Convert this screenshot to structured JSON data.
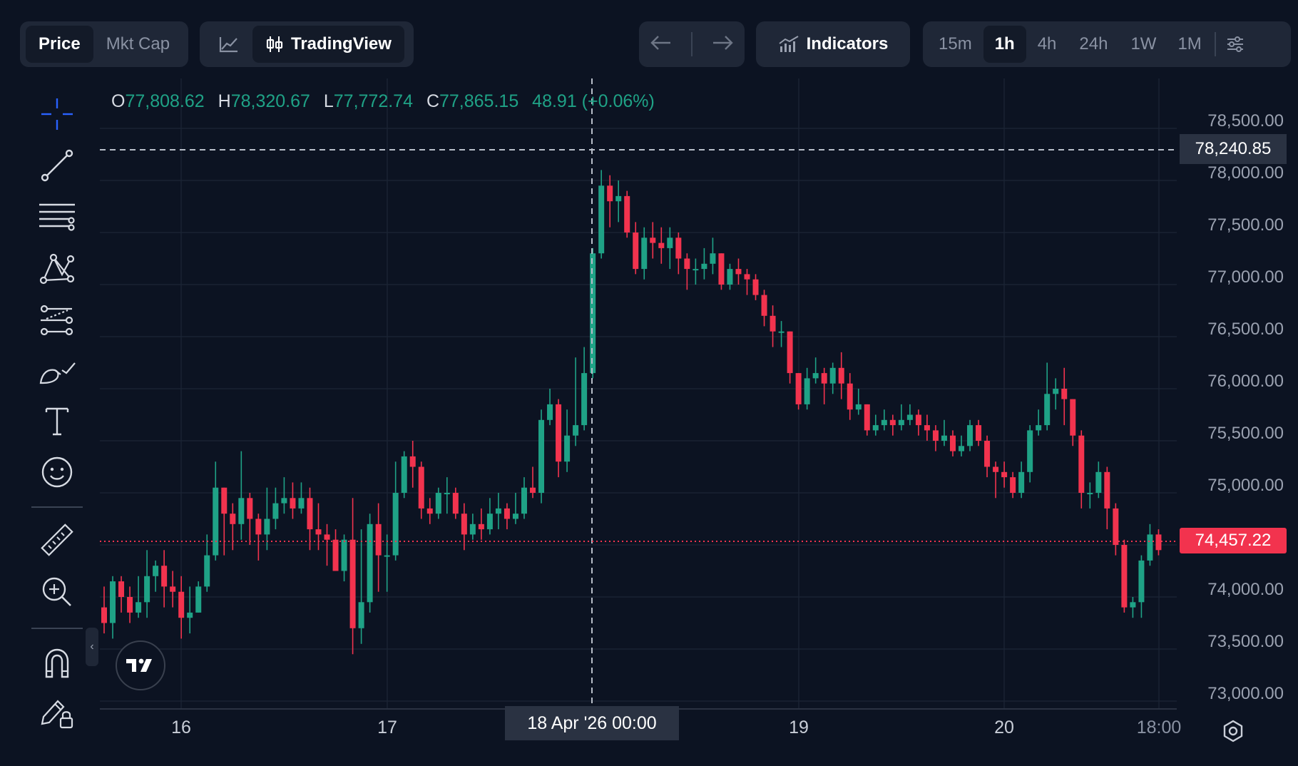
{
  "top_bar": {
    "mode_tabs": [
      {
        "label": "Price",
        "active": true
      },
      {
        "label": "Mkt Cap",
        "active": false
      }
    ],
    "chart_type_icon": "line-chart-icon",
    "tradingview_label": "TradingView",
    "indicators_label": "Indicators",
    "timeframes": [
      {
        "label": "15m",
        "active": false
      },
      {
        "label": "1h",
        "active": true
      },
      {
        "label": "4h",
        "active": false
      },
      {
        "label": "24h",
        "active": false
      },
      {
        "label": "1W",
        "active": false
      },
      {
        "label": "1M",
        "active": false
      }
    ]
  },
  "ohlc": {
    "o_key": "O",
    "o": "77,808.62",
    "h_key": "H",
    "h": "78,320.67",
    "l_key": "L",
    "l": "77,772.74",
    "c_key": "C",
    "c": "77,865.15",
    "change": "48.91 (+0.06%)"
  },
  "price_axis": {
    "labels": [
      "78,500.00",
      "78,000.00",
      "77,500.00",
      "77,000.00",
      "76,500.00",
      "76,000.00",
      "75,500.00",
      "75,000.00",
      "74,000.00",
      "73,500.00",
      "73,000.00"
    ],
    "crosshair_price": "78,240.85",
    "last_price": "74,457.22"
  },
  "time_axis": {
    "labels": [
      "16",
      "17",
      "19",
      "20",
      "18:00"
    ],
    "crosshair_time": "18 Apr '26   00:00"
  },
  "colors": {
    "background": "#0c1322",
    "up": "#1fa286",
    "down": "#f2334e",
    "grid": "#1a2333",
    "accent": "#2962ff"
  },
  "toolbar_icons": [
    "crosshair-icon",
    "trend-line-icon",
    "fib-lines-icon",
    "pattern-icon",
    "projection-icon",
    "brush-icon",
    "text-icon",
    "emoji-icon",
    "ruler-icon",
    "zoom-in-icon",
    "magnet-icon",
    "lock-drawings-icon"
  ],
  "chart_data": {
    "type": "candlestick",
    "interval": "1h",
    "ylim": [
      72800,
      78700
    ],
    "x_ticks": [
      "16",
      "17",
      "18 Apr '26 00:00",
      "19",
      "20",
      "18:00"
    ],
    "crosshair": {
      "price": 78240.85,
      "time": "18 Apr '26 00:00"
    },
    "last_price": 74457.22,
    "candles": [
      [
        73900,
        73750,
        74100,
        73650
      ],
      [
        73750,
        74150,
        74200,
        73600
      ],
      [
        74150,
        74000,
        74200,
        73850
      ],
      [
        74000,
        73850,
        74100,
        73750
      ],
      [
        73850,
        73950,
        74200,
        73800
      ],
      [
        73950,
        74200,
        74450,
        73800
      ],
      [
        74200,
        74300,
        74350,
        74050
      ],
      [
        74300,
        74100,
        74450,
        73900
      ],
      [
        74100,
        74050,
        74250,
        73900
      ],
      [
        74050,
        73800,
        74200,
        73600
      ],
      [
        73800,
        73850,
        74100,
        73650
      ],
      [
        73850,
        74100,
        74150,
        73850
      ],
      [
        74100,
        74400,
        74600,
        74050
      ],
      [
        74400,
        75050,
        75300,
        74350
      ],
      [
        75050,
        74800,
        75050,
        74400
      ],
      [
        74800,
        74700,
        74900,
        74450
      ],
      [
        74700,
        74950,
        75400,
        74550
      ],
      [
        74950,
        74750,
        75000,
        74500
      ],
      [
        74750,
        74600,
        74800,
        74350
      ],
      [
        74600,
        74750,
        75050,
        74450
      ],
      [
        74750,
        74900,
        75050,
        74650
      ],
      [
        74900,
        74950,
        75150,
        74800
      ],
      [
        74950,
        74850,
        75100,
        74750
      ],
      [
        74850,
        74950,
        75100,
        74800
      ],
      [
        74950,
        74650,
        75050,
        74450
      ],
      [
        74650,
        74600,
        74900,
        74450
      ],
      [
        74600,
        74550,
        74700,
        74300
      ],
      [
        74550,
        74250,
        74650,
        74250
      ],
      [
        74250,
        74550,
        74600,
        74150
      ],
      [
        74550,
        73700,
        74950,
        73450
      ],
      [
        73700,
        73950,
        74650,
        73550
      ],
      [
        73950,
        74700,
        74800,
        73850
      ],
      [
        74700,
        74400,
        74900,
        74050
      ],
      [
        74400,
        74400,
        74600,
        74050
      ],
      [
        74400,
        75000,
        75300,
        74350
      ],
      [
        75000,
        75350,
        75400,
        74950
      ],
      [
        75350,
        75250,
        75500,
        75050
      ],
      [
        75250,
        74850,
        75300,
        74750
      ],
      [
        74850,
        74800,
        74950,
        74700
      ],
      [
        74800,
        75000,
        75050,
        74750
      ],
      [
        75000,
        75000,
        75150,
        74800
      ],
      [
        75000,
        74800,
        75050,
        74750
      ],
      [
        74800,
        74600,
        74900,
        74450
      ],
      [
        74600,
        74700,
        74800,
        74550
      ],
      [
        74700,
        74650,
        74850,
        74550
      ],
      [
        74650,
        74800,
        74950,
        74600
      ],
      [
        74800,
        74850,
        75000,
        74650
      ],
      [
        74850,
        74750,
        74900,
        74650
      ],
      [
        74750,
        74800,
        75000,
        74700
      ],
      [
        74800,
        75050,
        75150,
        74750
      ],
      [
        75050,
        75000,
        75250,
        74950
      ],
      [
        75000,
        75700,
        75800,
        74900
      ],
      [
        75700,
        75850,
        76000,
        75650
      ],
      [
        75850,
        75300,
        75900,
        75150
      ],
      [
        75300,
        75550,
        75800,
        75200
      ],
      [
        75550,
        75650,
        76300,
        75450
      ],
      [
        75650,
        76150,
        76400,
        75600
      ],
      [
        76150,
        77300,
        77350,
        76100
      ],
      [
        77300,
        77950,
        78100,
        77250
      ],
      [
        77950,
        77800,
        78050,
        77550
      ],
      [
        77800,
        77850,
        78000,
        77600
      ],
      [
        77850,
        77500,
        77900,
        77450
      ],
      [
        77500,
        77150,
        77600,
        77100
      ],
      [
        77150,
        77450,
        77550,
        77050
      ],
      [
        77450,
        77400,
        77600,
        77250
      ],
      [
        77400,
        77350,
        77550,
        77200
      ],
      [
        77350,
        77450,
        77550,
        77150
      ],
      [
        77450,
        77250,
        77500,
        77100
      ],
      [
        77250,
        77150,
        77300,
        76950
      ],
      [
        77150,
        77150,
        77250,
        77000
      ],
      [
        77150,
        77200,
        77350,
        77050
      ],
      [
        77200,
        77300,
        77450,
        77100
      ],
      [
        77300,
        77000,
        77300,
        76950
      ],
      [
        77000,
        77150,
        77200,
        76950
      ],
      [
        77150,
        77100,
        77250,
        77000
      ],
      [
        77100,
        77050,
        77150,
        76900
      ],
      [
        77050,
        76900,
        77100,
        76850
      ],
      [
        76900,
        76700,
        76950,
        76600
      ],
      [
        76700,
        76550,
        76800,
        76400
      ],
      [
        76550,
        76550,
        76650,
        76400
      ],
      [
        76550,
        76150,
        76550,
        76050
      ],
      [
        76150,
        75850,
        76150,
        75800
      ],
      [
        75850,
        76100,
        76200,
        75800
      ],
      [
        76100,
        76150,
        76300,
        76050
      ],
      [
        76150,
        76050,
        76200,
        75850
      ],
      [
        76050,
        76200,
        76250,
        75950
      ],
      [
        76200,
        76050,
        76350,
        75900
      ],
      [
        76050,
        75800,
        76150,
        75700
      ],
      [
        75800,
        75850,
        76000,
        75750
      ],
      [
        75850,
        75600,
        75850,
        75550
      ],
      [
        75600,
        75650,
        75750,
        75550
      ],
      [
        75650,
        75700,
        75800,
        75600
      ],
      [
        75700,
        75650,
        75750,
        75550
      ],
      [
        75650,
        75700,
        75850,
        75600
      ],
      [
        75700,
        75750,
        75850,
        75650
      ],
      [
        75750,
        75650,
        75800,
        75550
      ],
      [
        75650,
        75600,
        75750,
        75500
      ],
      [
        75600,
        75500,
        75650,
        75400
      ],
      [
        75500,
        75550,
        75700,
        75450
      ],
      [
        75550,
        75400,
        75600,
        75350
      ],
      [
        75400,
        75450,
        75550,
        75350
      ],
      [
        75450,
        75650,
        75700,
        75400
      ],
      [
        75650,
        75500,
        75700,
        75450
      ],
      [
        75500,
        75250,
        75550,
        75150
      ],
      [
        75250,
        75200,
        75300,
        74950
      ],
      [
        75200,
        75150,
        75300,
        75050
      ],
      [
        75150,
        75000,
        75200,
        74950
      ],
      [
        75000,
        75200,
        75300,
        74950
      ],
      [
        75200,
        75600,
        75650,
        75100
      ],
      [
        75600,
        75650,
        75800,
        75550
      ],
      [
        75650,
        75950,
        76250,
        75600
      ],
      [
        75950,
        76000,
        76100,
        75800
      ],
      [
        76000,
        75900,
        76200,
        75650
      ],
      [
        75900,
        75550,
        75900,
        75450
      ],
      [
        75550,
        75000,
        75600,
        74850
      ],
      [
        75000,
        75000,
        75100,
        74850
      ],
      [
        75000,
        75200,
        75300,
        74950
      ],
      [
        75200,
        74850,
        75250,
        74650
      ],
      [
        74850,
        74500,
        74900,
        74400
      ],
      [
        74500,
        73900,
        74550,
        73850
      ],
      [
        73900,
        73950,
        74000,
        73800
      ],
      [
        73950,
        74350,
        74400,
        73800
      ],
      [
        74350,
        74600,
        74700,
        74300
      ],
      [
        74600,
        74450,
        74650,
        74400
      ]
    ]
  }
}
